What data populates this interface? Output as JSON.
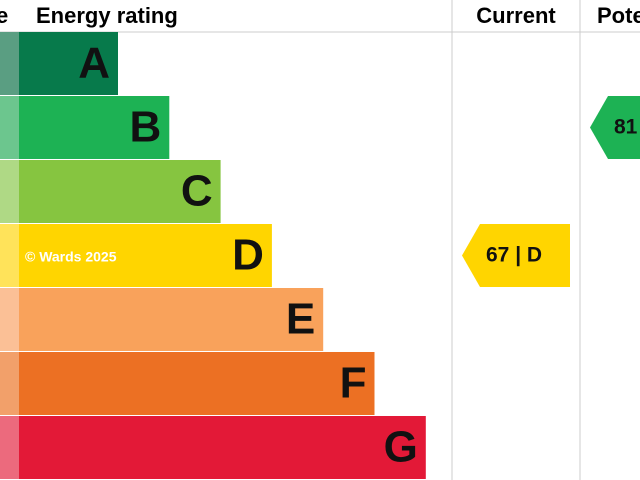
{
  "header": {
    "score": "e",
    "rating": "Energy rating",
    "current": "Current",
    "potential": "Pote"
  },
  "bands": [
    {
      "letter": "A",
      "color": "#077a4b",
      "strip": "#5a9e82"
    },
    {
      "letter": "B",
      "color": "#1db254",
      "strip": "#6cc68e"
    },
    {
      "letter": "C",
      "color": "#86c540",
      "strip": "#afd985"
    },
    {
      "letter": "D",
      "color": "#ffd500",
      "strip": "#ffe35a"
    },
    {
      "letter": "E",
      "color": "#f9a25b",
      "strip": "#fbc096"
    },
    {
      "letter": "F",
      "color": "#ec7023",
      "strip": "#f2a06a"
    },
    {
      "letter": "G",
      "color": "#e31937",
      "strip": "#ec6a7d"
    }
  ],
  "watermark": "© Wards 2025",
  "current": {
    "label": "67 | D",
    "color": "#ffd500"
  },
  "potential": {
    "label": "81",
    "color": "#1db254"
  }
}
